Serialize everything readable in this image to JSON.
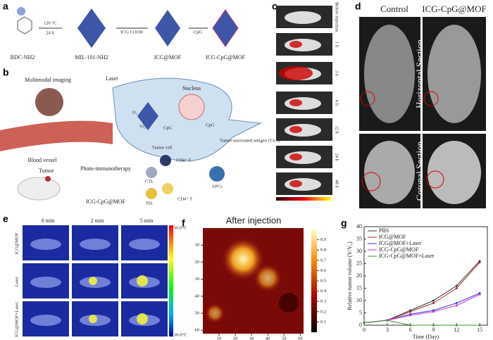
{
  "panels": {
    "a": {
      "label": "a",
      "compounds": [
        "BDC-NH2",
        "MIL-101-NH2",
        "ICG@MOF",
        "ICG-CpG@MOF"
      ],
      "step1_top": "120 °C",
      "step1_bottom": "24 h",
      "step2": "ICG-COOH",
      "step3": "CpG"
    },
    "b": {
      "label": "b",
      "texts": {
        "imaging": "Multimodal imaging",
        "laser": "Laser",
        "nucleus": "Nucleus",
        "vessel": "Blood vessel",
        "cell": "Tumor cell",
        "taa": "Tumor-associated antigen (TAA)",
        "tumor": "Tumor",
        "therapy": "Photo-immunotherapy",
        "cd8": "CD8⁺ T",
        "ctl": "CTL",
        "apcs": "APCs",
        "th1": "Th1",
        "cd4": "CD4⁺ T",
        "agent": "ICG-CpG@MOF",
        "cpg": "CpG",
        "cpg2": "CpG",
        "o2": "O₂",
        "so2": "¹O₂"
      }
    },
    "c": {
      "label": "c",
      "times": [
        "Before injection",
        "1 h",
        "3 h",
        "6 h",
        "12 h",
        "24 h",
        "48 h"
      ]
    },
    "d": {
      "label": "d",
      "columns": [
        "Control",
        "ICG-CpG@MOF"
      ],
      "rows": [
        "Horizontal Section",
        "Coronal Section"
      ]
    },
    "e": {
      "label": "e",
      "columns": [
        "0 min",
        "2 min",
        "5 min"
      ],
      "rows": [
        "ICG@MOF",
        "Laser",
        "ICG@MOF+Laser"
      ],
      "scale_max": "50.0°C",
      "scale_min": "30.0°C"
    },
    "f": {
      "label": "f",
      "title": "After injection",
      "xlim": [
        0,
        62
      ],
      "ylim": [
        0,
        62
      ],
      "xticks": [
        10,
        20,
        30,
        40,
        50,
        60
      ],
      "yticks": [
        10,
        20,
        30,
        40,
        50,
        60
      ],
      "clim": [
        0,
        1
      ],
      "cticks": [
        0.1,
        0.2,
        0.3,
        0.4,
        0.5,
        0.6,
        0.7,
        0.8,
        0.9
      ]
    },
    "g": {
      "label": "g",
      "xlabel": "Time (Day)",
      "ylabel": "Relative tumor volume (V/V₀)",
      "xlim": [
        0,
        16
      ],
      "ylim": [
        0,
        40
      ],
      "xticks": [
        0,
        3,
        6,
        9,
        12,
        15
      ],
      "yticks": [
        0,
        5,
        10,
        15,
        20,
        25,
        30,
        35,
        40
      ],
      "x": [
        0,
        3,
        6,
        9,
        12,
        15
      ],
      "series": [
        {
          "name": "PBS",
          "color": "#333333",
          "values": [
            1,
            2,
            6,
            10,
            16,
            26
          ]
        },
        {
          "name": "ICG@MOF",
          "color": "#a0302e",
          "values": [
            1,
            2,
            5.5,
            9,
            15,
            25.5
          ]
        },
        {
          "name": "ICG@MOF+Laser",
          "color": "#3a3ad0",
          "values": [
            1,
            2,
            4.5,
            6,
            9,
            13
          ]
        },
        {
          "name": "ICG-CpG@MOF",
          "color": "#cc33cc",
          "values": [
            1,
            2,
            4,
            5.5,
            8,
            12.5
          ]
        },
        {
          "name": "ICG-CpG@MOF+Laser",
          "color": "#3f8f2f",
          "values": [
            1,
            2,
            0,
            0,
            0,
            0
          ]
        }
      ]
    }
  }
}
